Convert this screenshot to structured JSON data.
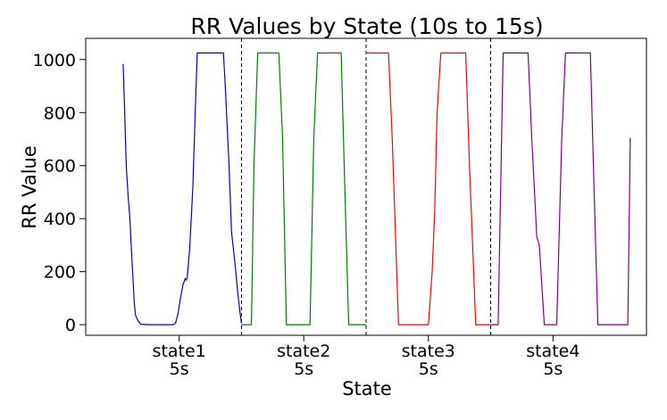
{
  "chart_data": {
    "type": "line",
    "title": "RR Values by State (10s to 15s)",
    "xlabel": "State",
    "ylabel": "RR Value",
    "ylim": [
      -40,
      1080
    ],
    "grid": false,
    "legend": "none",
    "yticks": [
      0,
      200,
      400,
      600,
      800,
      1000
    ],
    "categories": [
      {
        "state": "state1",
        "duration": "5s"
      },
      {
        "state": "state2",
        "duration": "5s"
      },
      {
        "state": "state3",
        "duration": "5s"
      },
      {
        "state": "state4",
        "duration": "5s"
      }
    ],
    "series": [
      {
        "color": "#0000cc",
        "points": [
          [
            0.05,
            983
          ],
          [
            0.06,
            840
          ],
          [
            0.075,
            600
          ],
          [
            0.09,
            490
          ],
          [
            0.105,
            400
          ],
          [
            0.115,
            300
          ],
          [
            0.13,
            170
          ],
          [
            0.14,
            80
          ],
          [
            0.15,
            35
          ],
          [
            0.17,
            15
          ],
          [
            0.19,
            2
          ],
          [
            0.25,
            0
          ],
          [
            0.3,
            0
          ],
          [
            0.35,
            0
          ],
          [
            0.38,
            0
          ],
          [
            0.45,
            0
          ],
          [
            0.47,
            5
          ],
          [
            0.49,
            40
          ],
          [
            0.51,
            100
          ],
          [
            0.53,
            150
          ],
          [
            0.55,
            175
          ],
          [
            0.555,
            168
          ],
          [
            0.565,
            178
          ],
          [
            0.585,
            290
          ],
          [
            0.61,
            520
          ],
          [
            0.63,
            820
          ],
          [
            0.645,
            1025
          ],
          [
            0.7,
            1025
          ],
          [
            0.8,
            1025
          ],
          [
            0.855,
            1025
          ],
          [
            0.87,
            900
          ],
          [
            0.9,
            600
          ],
          [
            0.92,
            350
          ],
          [
            0.95,
            220
          ],
          [
            0.97,
            120
          ],
          [
            0.99,
            40
          ],
          [
            1.0,
            5
          ]
        ]
      },
      {
        "color": "#007f00",
        "points": [
          [
            1.0,
            0
          ],
          [
            1.06,
            0
          ],
          [
            1.08,
            0
          ],
          [
            1.1,
            600
          ],
          [
            1.13,
            1025
          ],
          [
            1.3,
            1025
          ],
          [
            1.33,
            700
          ],
          [
            1.36,
            0
          ],
          [
            1.55,
            0
          ],
          [
            1.58,
            700
          ],
          [
            1.61,
            1025
          ],
          [
            1.8,
            1025
          ],
          [
            1.83,
            500
          ],
          [
            1.86,
            0
          ],
          [
            2.0,
            0
          ]
        ]
      },
      {
        "color": "#ff0000",
        "points": [
          [
            2.0,
            1025
          ],
          [
            2.18,
            1025
          ],
          [
            2.21,
            700
          ],
          [
            2.26,
            0
          ],
          [
            2.5,
            0
          ],
          [
            2.53,
            200
          ],
          [
            2.55,
            420
          ],
          [
            2.57,
            800
          ],
          [
            2.6,
            1025
          ],
          [
            2.8,
            1025
          ],
          [
            2.83,
            600
          ],
          [
            2.88,
            0
          ],
          [
            3.0,
            0
          ]
        ]
      },
      {
        "color": "#800080",
        "points": [
          [
            3.0,
            0
          ],
          [
            3.06,
            0
          ],
          [
            3.1,
            1025
          ],
          [
            3.3,
            1025
          ],
          [
            3.33,
            700
          ],
          [
            3.37,
            330
          ],
          [
            3.39,
            300
          ],
          [
            3.43,
            0
          ],
          [
            3.53,
            0
          ],
          [
            3.57,
            700
          ],
          [
            3.6,
            1025
          ],
          [
            3.8,
            1025
          ],
          [
            3.83,
            500
          ],
          [
            3.86,
            0
          ],
          [
            4.0,
            0
          ],
          [
            4.1,
            0
          ],
          [
            4.12,
            705
          ]
        ]
      }
    ]
  }
}
